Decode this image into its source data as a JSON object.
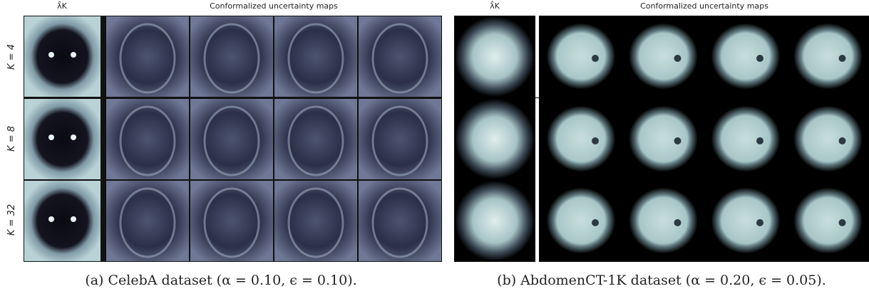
{
  "panel_a": {
    "lambda_label": "λ̂K",
    "maps_label": "Conformalized uncertainty maps",
    "rows": [
      "K = 4",
      "K = 8",
      "K = 32"
    ],
    "caption": "(a) CelebA dataset (α = 0.10, ϵ = 0.10)."
  },
  "panel_b": {
    "lambda_label": "λ̂K",
    "maps_label": "Conformalized uncertainty maps",
    "caption": "(b) AbdomenCT-1K dataset (α = 0.20, ϵ = 0.05)."
  }
}
